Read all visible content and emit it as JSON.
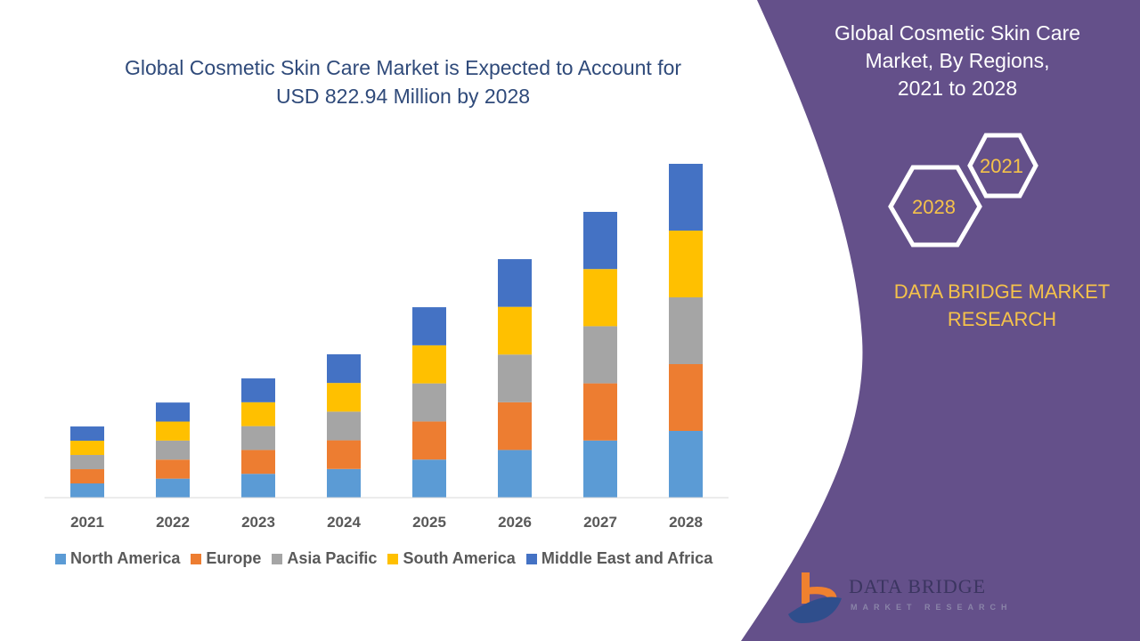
{
  "chart_data": {
    "type": "bar",
    "stacked": true,
    "title": "Global Cosmetic Skin Care Market is Expected to Account for USD 822.94 Million by 2028",
    "categories": [
      "2021",
      "2022",
      "2023",
      "2024",
      "2025",
      "2026",
      "2027",
      "2028"
    ],
    "series": [
      {
        "name": "North America",
        "color": "#5b9bd5",
        "values": [
          35.1,
          46.9,
          58.8,
          70.7,
          93.9,
          117.6,
          140.9,
          164.6
        ]
      },
      {
        "name": "Europe",
        "color": "#ed7d31",
        "values": [
          35.1,
          46.9,
          58.8,
          70.7,
          93.9,
          117.6,
          140.9,
          164.6
        ]
      },
      {
        "name": "Asia Pacific",
        "color": "#a5a5a5",
        "values": [
          35.1,
          46.9,
          58.8,
          70.7,
          93.9,
          117.6,
          140.9,
          164.6
        ]
      },
      {
        "name": "South America",
        "color": "#ffc000",
        "values": [
          35.1,
          46.9,
          58.8,
          70.7,
          93.9,
          117.6,
          140.9,
          164.6
        ]
      },
      {
        "name": "Middle East and Africa",
        "color": "#4472c4",
        "values": [
          35.1,
          46.9,
          58.8,
          70.7,
          93.9,
          117.6,
          140.9,
          164.6
        ]
      }
    ],
    "ylim": [
      0,
      823
    ],
    "grid": false,
    "legend_position": "bottom"
  },
  "title_line1": "Global Cosmetic Skin Care Market is Expected to Account for",
  "title_line2": "USD 822.94 Million by 2028",
  "side": {
    "title_line1": "Global Cosmetic Skin Care",
    "title_line2": "Market, By Regions,",
    "title_line3": "2021 to 2028",
    "hex_start": "2021",
    "hex_end": "2028",
    "brand_line1": "DATA BRIDGE MARKET",
    "brand_line2": "RESEARCH",
    "panel_color": "#64508a"
  },
  "logo": {
    "name": "DATA BRIDGE",
    "tagline": "MARKET RESEARCH"
  }
}
